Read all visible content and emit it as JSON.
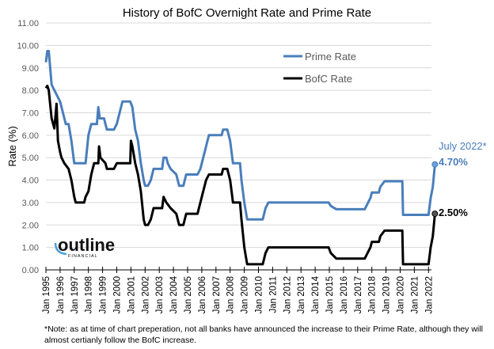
{
  "chart_data": {
    "type": "line",
    "title": "History of BofC Overnight Rate and Prime Rate",
    "xlabel": "",
    "ylabel": "Rate (%)",
    "ylim": [
      0,
      11
    ],
    "xlim": [
      1995,
      2022.5
    ],
    "yticks": [
      "0.00",
      "1.00",
      "2.00",
      "3.00",
      "4.00",
      "5.00",
      "6.00",
      "7.00",
      "8.00",
      "9.00",
      "10.00",
      "11.00"
    ],
    "xticks": [
      "Jan 1995",
      "Jan 1996",
      "Jan 1997",
      "Jan 1998",
      "Jan 1999",
      "Jan 2000",
      "Jan 2001",
      "Jan 2002",
      "Jan 2003",
      "Jan 2004",
      "Jan 2005",
      "Jan 2006",
      "Jan 2007",
      "Jan 2008",
      "Jan 2009",
      "Jan 2010",
      "Jan 2011",
      "Jan 2012",
      "Jan 2013",
      "Jan 2014",
      "Jan 2015",
      "Jan 2016",
      "Jan 2017",
      "Jan 2018",
      "Jan 2019",
      "Jan 2020",
      "Jan 2021",
      "Jan 2022"
    ],
    "grid": true,
    "legend_position": "top-right",
    "series": [
      {
        "name": "Prime Rate",
        "color": "#4A7EBB",
        "x": [
          1995.0,
          1995.1,
          1995.2,
          1995.4,
          1995.6,
          1995.8,
          1996.0,
          1996.2,
          1996.4,
          1996.6,
          1996.8,
          1997.0,
          1997.8,
          1998.0,
          1998.2,
          1998.6,
          1998.7,
          1998.8,
          1999.1,
          1999.3,
          1999.8,
          2000.0,
          2000.2,
          2000.4,
          2000.95,
          2001.1,
          2001.3,
          2001.5,
          2001.7,
          2001.9,
          2002.0,
          2002.2,
          2002.4,
          2002.6,
          2003.2,
          2003.3,
          2003.5,
          2003.6,
          2003.8,
          2004.2,
          2004.4,
          2004.7,
          2004.9,
          2005.7,
          2005.9,
          2006.1,
          2006.3,
          2006.5,
          2007.4,
          2007.5,
          2007.8,
          2008.0,
          2008.2,
          2008.7,
          2008.8,
          2009.0,
          2009.2,
          2010.3,
          2010.5,
          2010.7,
          2014.95,
          2015.1,
          2015.5,
          2017.5,
          2017.7,
          2017.9,
          2018.0,
          2018.5,
          2018.6,
          2018.9,
          2020.15,
          2020.2,
          2022.0,
          2022.15,
          2022.3,
          2022.45
        ],
        "values": [
          9.25,
          9.75,
          9.75,
          8.25,
          8.0,
          7.75,
          7.5,
          7.0,
          6.5,
          6.5,
          5.75,
          4.75,
          4.75,
          6.0,
          6.5,
          6.5,
          7.25,
          6.75,
          6.75,
          6.25,
          6.25,
          6.5,
          7.0,
          7.5,
          7.5,
          7.25,
          6.25,
          5.75,
          4.75,
          4.0,
          3.75,
          3.75,
          4.0,
          4.5,
          4.5,
          5.0,
          5.0,
          4.75,
          4.5,
          4.25,
          3.75,
          3.75,
          4.25,
          4.25,
          4.5,
          5.0,
          5.5,
          6.0,
          6.0,
          6.25,
          6.25,
          5.75,
          4.75,
          4.75,
          4.0,
          3.0,
          2.25,
          2.25,
          2.75,
          3.0,
          3.0,
          2.85,
          2.7,
          2.7,
          2.95,
          3.2,
          3.45,
          3.45,
          3.7,
          3.95,
          3.95,
          2.45,
          2.45,
          3.2,
          3.7,
          4.7
        ]
      },
      {
        "name": "BofC Rate",
        "color": "#000000",
        "x": [
          1995.0,
          1995.1,
          1995.2,
          1995.4,
          1995.6,
          1995.75,
          1995.85,
          1996.0,
          1996.1,
          1996.3,
          1996.6,
          1996.8,
          1997.0,
          1997.1,
          1997.7,
          1997.8,
          1998.0,
          1998.2,
          1998.4,
          1998.7,
          1998.75,
          1998.85,
          1999.2,
          1999.3,
          1999.8,
          2000.0,
          2000.95,
          2001.0,
          2001.1,
          2001.3,
          2001.5,
          2001.7,
          2001.9,
          2002.0,
          2002.2,
          2002.4,
          2002.6,
          2003.2,
          2003.3,
          2003.5,
          2003.8,
          2004.2,
          2004.4,
          2004.7,
          2004.9,
          2005.7,
          2005.9,
          2006.1,
          2006.3,
          2006.5,
          2007.4,
          2007.5,
          2007.8,
          2008.0,
          2008.2,
          2008.7,
          2008.8,
          2009.0,
          2009.2,
          2010.3,
          2010.5,
          2010.7,
          2014.95,
          2015.1,
          2015.5,
          2017.5,
          2017.7,
          2017.9,
          2018.0,
          2018.5,
          2018.6,
          2018.9,
          2020.15,
          2020.2,
          2022.0,
          2022.15,
          2022.3,
          2022.45
        ],
        "values": [
          8.1,
          8.2,
          8.0,
          6.75,
          6.3,
          7.4,
          5.75,
          5.25,
          5.0,
          4.75,
          4.5,
          4.0,
          3.25,
          3.0,
          3.0,
          3.25,
          3.5,
          4.25,
          4.75,
          4.75,
          5.5,
          5.0,
          4.75,
          4.5,
          4.5,
          4.75,
          4.75,
          5.75,
          5.5,
          4.75,
          4.25,
          3.5,
          2.25,
          2.0,
          2.0,
          2.25,
          2.75,
          2.75,
          3.25,
          3.0,
          2.75,
          2.5,
          2.0,
          2.0,
          2.5,
          2.5,
          3.0,
          3.5,
          4.0,
          4.25,
          4.25,
          4.5,
          4.5,
          4.0,
          3.0,
          3.0,
          2.25,
          1.0,
          0.25,
          0.25,
          0.75,
          1.0,
          1.0,
          0.75,
          0.5,
          0.5,
          0.75,
          1.0,
          1.25,
          1.25,
          1.5,
          1.75,
          1.75,
          0.25,
          0.25,
          1.0,
          1.5,
          2.5
        ]
      }
    ],
    "annotations": {
      "date": "July 2022*",
      "prime_end": "4.70%",
      "bofc_end": "2.50%"
    }
  },
  "logo": {
    "name": "outline",
    "sub": "FINANCIAL"
  },
  "note": "*Note: as at time of chart preperation, not all banks have announced the increase to their Prime Rate, although they will almost certianly follow the BofC increase."
}
